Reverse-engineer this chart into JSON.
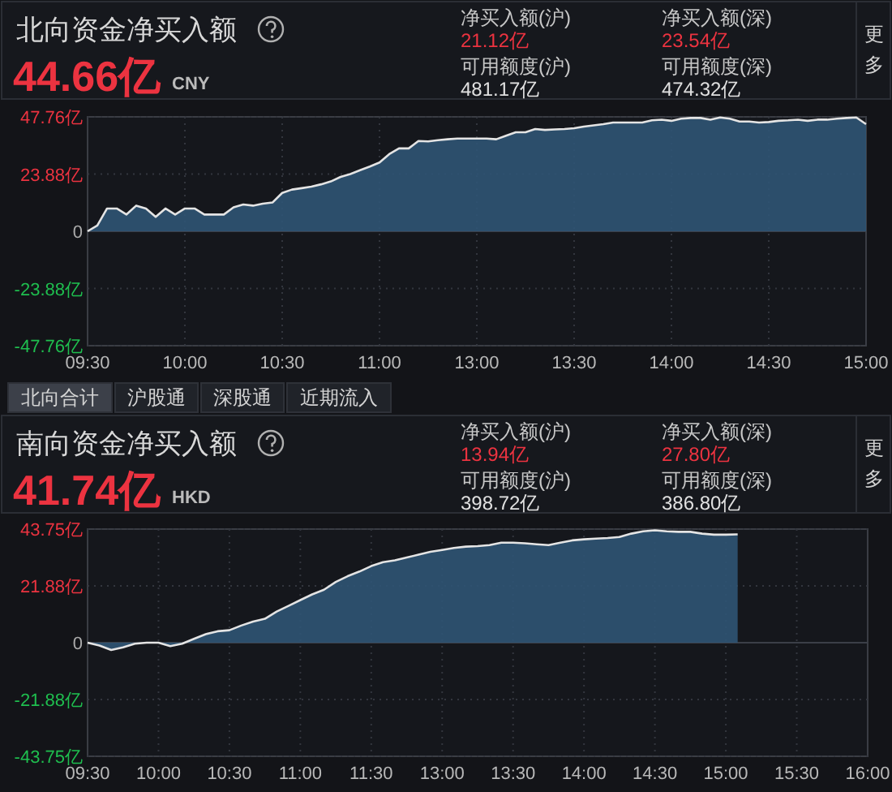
{
  "chart_data": [
    {
      "type": "area",
      "title": "北向资金净买入额",
      "annotations": [
        "44.66亿",
        "CNY",
        "净买入额(沪)",
        "21.12亿",
        "净买入额(深)",
        "23.54亿",
        "可用额度(沪)",
        "481.17亿",
        "可用额度(深)",
        "474.32亿",
        "更多",
        "北向合计",
        "沪股通",
        "深股通",
        "近期流入"
      ],
      "categories": [
        "09:30",
        null,
        null,
        null,
        null,
        null,
        null,
        null,
        null,
        null,
        "10:00",
        null,
        null,
        null,
        null,
        null,
        null,
        null,
        null,
        null,
        "10:30",
        null,
        null,
        null,
        null,
        null,
        null,
        null,
        null,
        null,
        "11:00",
        null,
        null,
        null,
        null,
        null,
        null,
        null,
        null,
        null,
        "13:00",
        null,
        null,
        null,
        null,
        null,
        null,
        null,
        null,
        null,
        "13:30",
        null,
        null,
        null,
        null,
        null,
        null,
        null,
        null,
        null,
        "14:00",
        null,
        null,
        null,
        null,
        null,
        null,
        null,
        null,
        null,
        "14:30",
        null,
        null,
        null,
        null,
        null,
        null,
        null,
        null,
        null,
        "15:00"
      ],
      "series": [
        {
          "color": "#2f5474",
          "values": [
            0,
            2.4,
            9.5,
            9.5,
            7,
            10.7,
            9.5,
            6,
            9.5,
            7,
            9.5,
            9.5,
            7,
            7,
            7,
            10,
            11.2,
            10.7,
            11.5,
            12,
            16,
            17.4,
            18,
            18.6,
            19.6,
            20.8,
            22.7,
            23.9,
            25.5,
            27,
            28.7,
            32.2,
            34.6,
            34.6,
            37.7,
            37.5,
            38,
            38.4,
            38.7,
            38.7,
            38.7,
            38.7,
            38.4,
            39.9,
            41.3,
            41.3,
            42.7,
            42.3,
            42.5,
            42.7,
            43,
            43.7,
            44.2,
            44.7,
            45.4,
            45.4,
            45.4,
            45.4,
            46.3,
            46.6,
            46.1,
            47,
            47.3,
            47.3,
            46.6,
            47.5,
            47,
            45.8,
            45.8,
            45.4,
            45.6,
            46.1,
            46.3,
            46.6,
            46.1,
            46.6,
            46.6,
            47,
            47.3,
            47.5,
            44.7
          ]
        }
      ],
      "ylim": [
        -47.76,
        47.76
      ],
      "yticks": [
        {
          "value": 47.76,
          "label": "47.76亿"
        },
        {
          "value": 23.88,
          "label": "23.88亿"
        },
        0,
        {
          "value": -23.88,
          "label": "-23.88亿"
        },
        {
          "value": -47.76,
          "label": "-47.76亿"
        }
      ],
      "grid": true
    },
    {
      "type": "area",
      "title": "南向资金净买入额",
      "annotations": [
        "41.74亿",
        "HKD",
        "净买入额(沪)",
        "13.94亿",
        "净买入额(深)",
        "27.80亿",
        "可用额度(沪)",
        "398.72亿",
        "可用额度(深)",
        "386.80亿",
        "更多"
      ],
      "categories": [
        "09:30",
        null,
        null,
        null,
        null,
        null,
        "10:00",
        null,
        null,
        null,
        null,
        null,
        "10:30",
        null,
        null,
        null,
        null,
        null,
        "11:00",
        null,
        null,
        null,
        null,
        null,
        "11:30",
        null,
        null,
        null,
        null,
        null,
        "13:00",
        null,
        null,
        null,
        null,
        null,
        "13:30",
        null,
        null,
        null,
        null,
        null,
        "14:00",
        null,
        null,
        null,
        null,
        null,
        "14:30",
        null,
        null,
        null,
        null,
        null,
        "15:00",
        null,
        null,
        null,
        null,
        null,
        "15:30",
        null,
        null,
        null,
        null,
        null,
        "16:00"
      ],
      "series": [
        {
          "color": "#2f5474",
          "values": [
            0,
            -1.1,
            -2.8,
            -1.8,
            -0.4,
            0,
            0,
            -1.3,
            -0.4,
            1.5,
            3.3,
            4.4,
            4.8,
            6.6,
            8.1,
            9.2,
            12,
            14.2,
            16.4,
            18.6,
            20.4,
            23.4,
            25.6,
            27.4,
            29.5,
            31,
            31.7,
            32.8,
            33.9,
            35,
            35.7,
            36.5,
            37,
            37.2,
            37.6,
            38.5,
            38.5,
            38.3,
            37.9,
            37.6,
            38.5,
            39.4,
            39.8,
            40.1,
            40.3,
            40.7,
            42,
            42.9,
            43.3,
            42.9,
            42.7,
            42.7,
            42,
            41.6,
            41.6,
            41.7,
            null,
            null,
            null,
            null,
            null,
            null,
            null,
            null,
            null,
            null,
            null
          ]
        }
      ],
      "ylim": [
        -43.75,
        43.75
      ],
      "yticks": [
        {
          "value": 43.75,
          "label": "43.75亿"
        },
        {
          "value": 21.88,
          "label": "21.88亿"
        },
        0,
        {
          "value": -21.88,
          "label": "-21.88亿"
        },
        {
          "value": -43.75,
          "label": "-43.75亿"
        }
      ],
      "grid": true
    }
  ]
}
